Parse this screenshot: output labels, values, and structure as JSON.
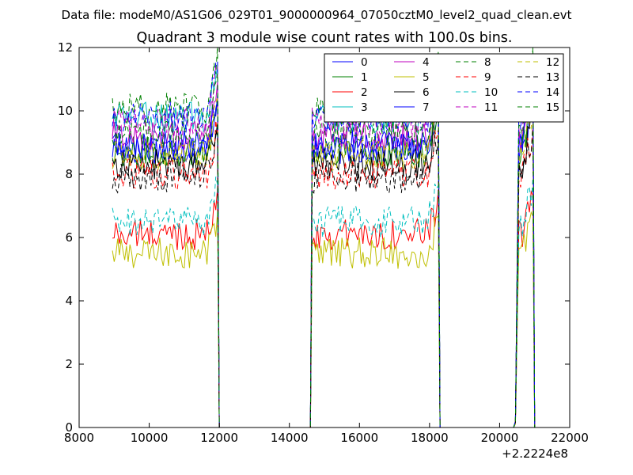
{
  "chart_data": {
    "type": "line",
    "suptitle": "Data file: modeM0/AS1G06_029T01_9000000964_07050cztM0_level2_quad_clean.evt",
    "title": "Quadrant 3 module wise count rates with 100.0s bins.",
    "xlabel": "",
    "ylabel": "",
    "offset_label": "+2.2224e8",
    "xlim": [
      8000,
      22000
    ],
    "ylim": [
      0,
      12
    ],
    "xticks": [
      8000,
      10000,
      12000,
      14000,
      16000,
      18000,
      20000,
      22000
    ],
    "xtick_labels": [
      "8000",
      "10000",
      "12000",
      "14000",
      "16000",
      "18000",
      "20000",
      "22000"
    ],
    "yticks": [
      0,
      2,
      4,
      6,
      8,
      10,
      12
    ],
    "ytick_labels": [
      "0",
      "2",
      "4",
      "6",
      "8",
      "10",
      "12"
    ],
    "grid": false,
    "legend_position": "top-right",
    "segments": [
      {
        "start": 8950,
        "end": 11950,
        "drop_end": 12050
      },
      {
        "start": 14650,
        "end": 18250,
        "drop_end": 18350
      },
      {
        "start": 20450,
        "end": 20950,
        "drop_end": 21000
      }
    ],
    "series": [
      {
        "name": "0",
        "color": "#0000ff",
        "dash": "solid",
        "level": 8.8
      },
      {
        "name": "1",
        "color": "#008000",
        "dash": "solid",
        "level": 8.7
      },
      {
        "name": "2",
        "color": "#ff0000",
        "dash": "solid",
        "level": 6.1
      },
      {
        "name": "3",
        "color": "#00bfbf",
        "dash": "solid",
        "level": 9.8
      },
      {
        "name": "4",
        "color": "#bf00bf",
        "dash": "solid",
        "level": 9.2
      },
      {
        "name": "5",
        "color": "#bfbf00",
        "dash": "solid",
        "level": 5.5
      },
      {
        "name": "6",
        "color": "#000000",
        "dash": "solid",
        "level": 8.3
      },
      {
        "name": "7",
        "color": "#0000ff",
        "dash": "solid",
        "level": 8.9
      },
      {
        "name": "8",
        "color": "#008000",
        "dash": "dashed",
        "level": 10.1
      },
      {
        "name": "9",
        "color": "#ff0000",
        "dash": "dashed",
        "level": 8.0
      },
      {
        "name": "10",
        "color": "#00bfbf",
        "dash": "dashed",
        "level": 6.5
      },
      {
        "name": "11",
        "color": "#bf00bf",
        "dash": "dashed",
        "level": 9.6
      },
      {
        "name": "12",
        "color": "#bfbf00",
        "dash": "dashed",
        "level": 8.6
      },
      {
        "name": "13",
        "color": "#000000",
        "dash": "dashed",
        "level": 7.9
      },
      {
        "name": "14",
        "color": "#0000ff",
        "dash": "dashed",
        "level": 9.8
      },
      {
        "name": "15",
        "color": "#008000",
        "dash": "dashed",
        "level": 9.3
      }
    ]
  }
}
